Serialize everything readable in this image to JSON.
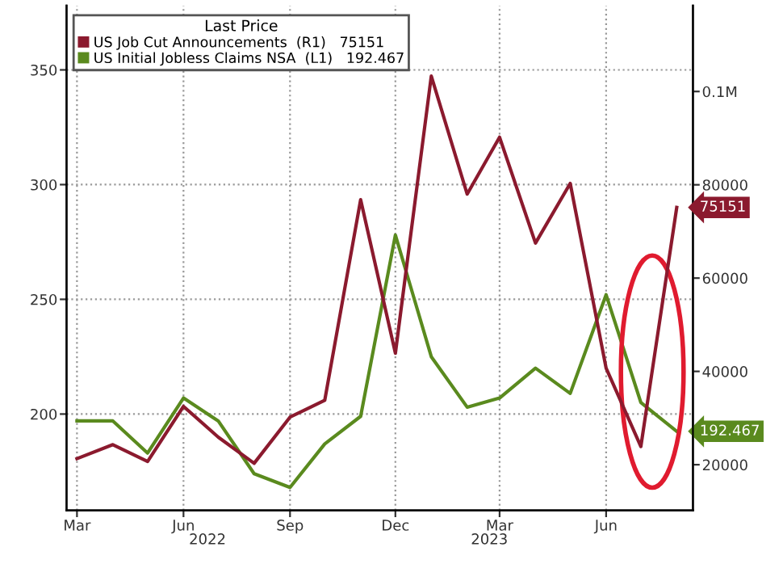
{
  "chart_data": {
    "type": "line",
    "legend_title": "Last Price",
    "x": [
      "2022-03",
      "2022-04",
      "2022-05",
      "2022-06",
      "2022-07",
      "2022-08",
      "2022-09",
      "2022-10",
      "2022-11",
      "2022-12",
      "2023-01",
      "2023-02",
      "2023-03",
      "2023-04",
      "2023-05",
      "2023-06",
      "2023-07",
      "2023-08"
    ],
    "series": [
      {
        "name": "US Job Cut Announcements  (R1)   75151",
        "color": "#8b1a2e",
        "axis": "y2",
        "values": [
          21300,
          24300,
          20700,
          32500,
          25900,
          20300,
          30200,
          33800,
          76800,
          43900,
          103300,
          78000,
          90200,
          67500,
          80300,
          40700,
          23900,
          75151
        ],
        "value_labels": [
          null,
          null,
          null,
          null,
          null,
          null,
          null,
          null,
          null,
          null,
          null,
          null,
          null,
          null,
          null,
          null,
          null,
          "75151"
        ]
      },
      {
        "name": "US Initial Jobless Claims NSA  (L1)   192.467",
        "color": "#5a8a1e",
        "values": [
          197,
          197,
          183,
          207,
          197,
          174,
          168,
          187,
          199,
          278,
          225,
          203,
          207,
          220,
          209,
          252,
          205,
          192.467
        ],
        "value_labels": [
          null,
          null,
          null,
          null,
          null,
          null,
          null,
          null,
          null,
          null,
          null,
          null,
          null,
          null,
          null,
          null,
          null,
          "192.467"
        ]
      }
    ],
    "xlim": [
      "2022-02-20",
      "2023-08-15"
    ],
    "xticks": [
      {
        "value": "2022-03-01",
        "label": "Mar"
      },
      {
        "value": "2022-06-01",
        "label": "Jun"
      },
      {
        "value": "2022-09-01",
        "label": "Sep"
      },
      {
        "value": "2022-12-01",
        "label": "Dec"
      },
      {
        "value": "2023-03-01",
        "label": "Mar"
      },
      {
        "value": "2023-06-01",
        "label": "Jun"
      }
    ],
    "ylim": [
      158,
      378
    ],
    "yticks": [
      200,
      250,
      300,
      350
    ],
    "y2lim": [
      10200,
      118400
    ],
    "y2ticks": [
      20000,
      40000,
      60000,
      80000,
      {
        "value": 100000,
        "label": "0.1M"
      }
    ],
    "annotations": [
      "2022",
      "2023"
    ],
    "grid": true,
    "legend": "top left",
    "line_style": "solid",
    "marker": "none"
  }
}
